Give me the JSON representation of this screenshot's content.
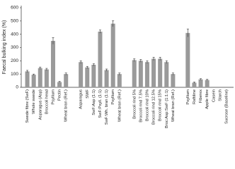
{
  "chart_data": {
    "type": "bar",
    "y_label": "Faecal bulking index (%)",
    "categories": [
      "Swede fibre (SwF)",
      "Whole swede",
      "Asparagus (Asp)",
      "Broccoli head",
      "Psyllium",
      "Pectin",
      "Wheat bran (Ref.)",
      "Asparagus",
      "SWF",
      "SwF:Asp (1:1)",
      "SwF:Psyll. (1:1)",
      "SwF:Wh. bran (1:1)",
      "Psyllium",
      "Wheat bran (Ref.)",
      "Broccoli rind 5%",
      "Broccoli rind 7.5%",
      "Broccoli rind 10%",
      "Broccoli rind 12.5%",
      "Broccoli rind 15%",
      "Broc:Asp:SwF (1:1:1)",
      "Wheat bran (Ref.)",
      "Psyllium",
      "Raftiline",
      "Fiberex",
      "Apple fibre",
      "Casein",
      "Starch",
      "Sucrose (Baseline)"
    ],
    "values": [
      120,
      95,
      145,
      135,
      350,
      40,
      100,
      190,
      150,
      170,
      420,
      130,
      480,
      100,
      205,
      200,
      190,
      215,
      215,
      190,
      100,
      410,
      35,
      60,
      55,
      0,
      0,
      0
    ],
    "errors": [
      8,
      5,
      8,
      8,
      25,
      5,
      8,
      10,
      8,
      8,
      12,
      8,
      22,
      8,
      10,
      10,
      10,
      12,
      12,
      10,
      8,
      30,
      5,
      5,
      5,
      0,
      0,
      0
    ],
    "color": "#9a9a9a",
    "ylim": [
      0,
      600
    ],
    "yticks": [
      0,
      100,
      200,
      300,
      400,
      500,
      600
    ]
  }
}
